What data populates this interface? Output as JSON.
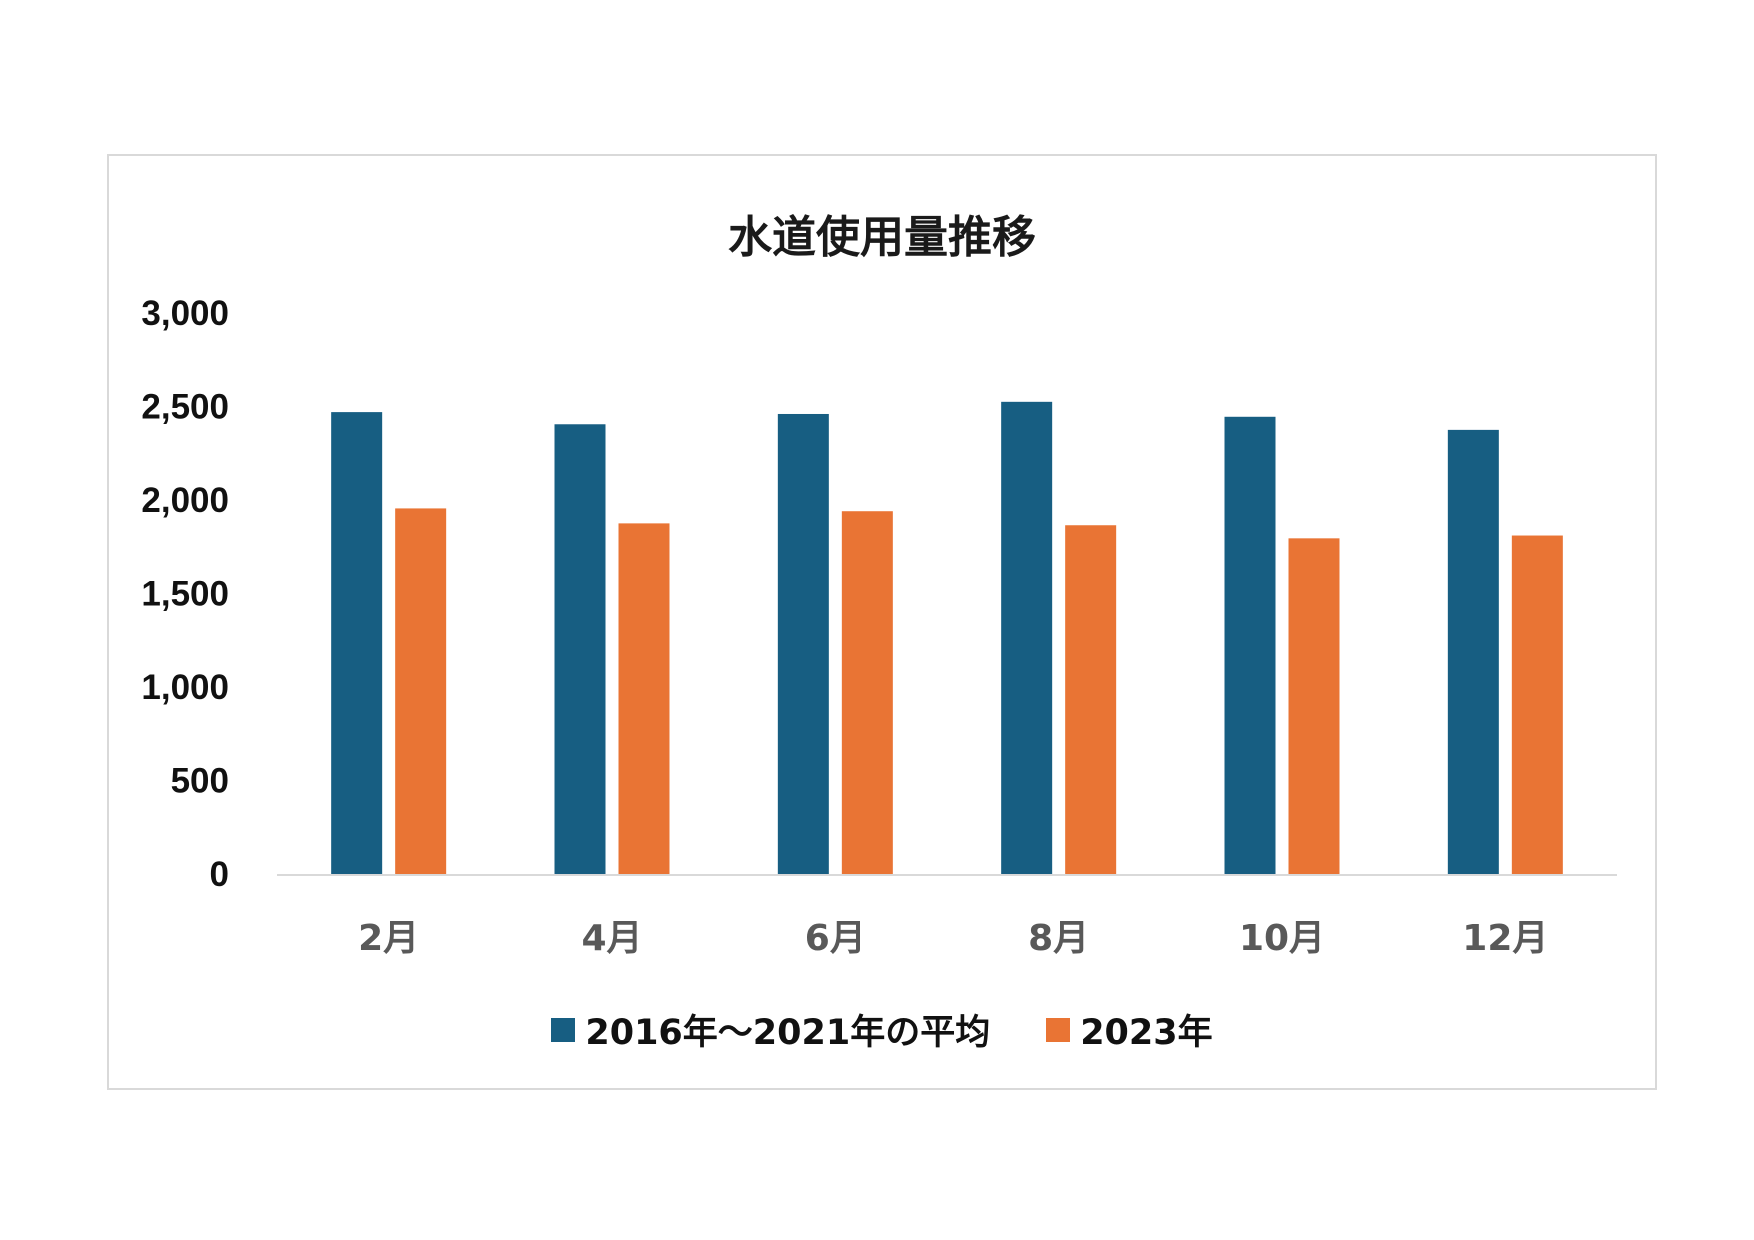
{
  "chart_data": {
    "type": "bar",
    "title": "水道使用量推移",
    "xlabel": "",
    "ylabel": "",
    "ylim": [
      0,
      3000
    ],
    "yticks": [
      0,
      500,
      1000,
      1500,
      2000,
      2500,
      3000
    ],
    "ytick_labels": [
      "0",
      "500",
      "1,000",
      "1,500",
      "2,000",
      "2,500",
      "3,000"
    ],
    "grid": false,
    "legend_position": "bottom",
    "categories": [
      "2月",
      "4月",
      "6月",
      "8月",
      "10月",
      "12月"
    ],
    "series": [
      {
        "name": "2016年～2021年の平均",
        "color": "#175e82",
        "values": [
          2470,
          2405,
          2460,
          2525,
          2445,
          2375
        ]
      },
      {
        "name": "2023年",
        "color": "#e97434",
        "values": [
          1955,
          1875,
          1940,
          1865,
          1795,
          1810
        ]
      }
    ]
  }
}
